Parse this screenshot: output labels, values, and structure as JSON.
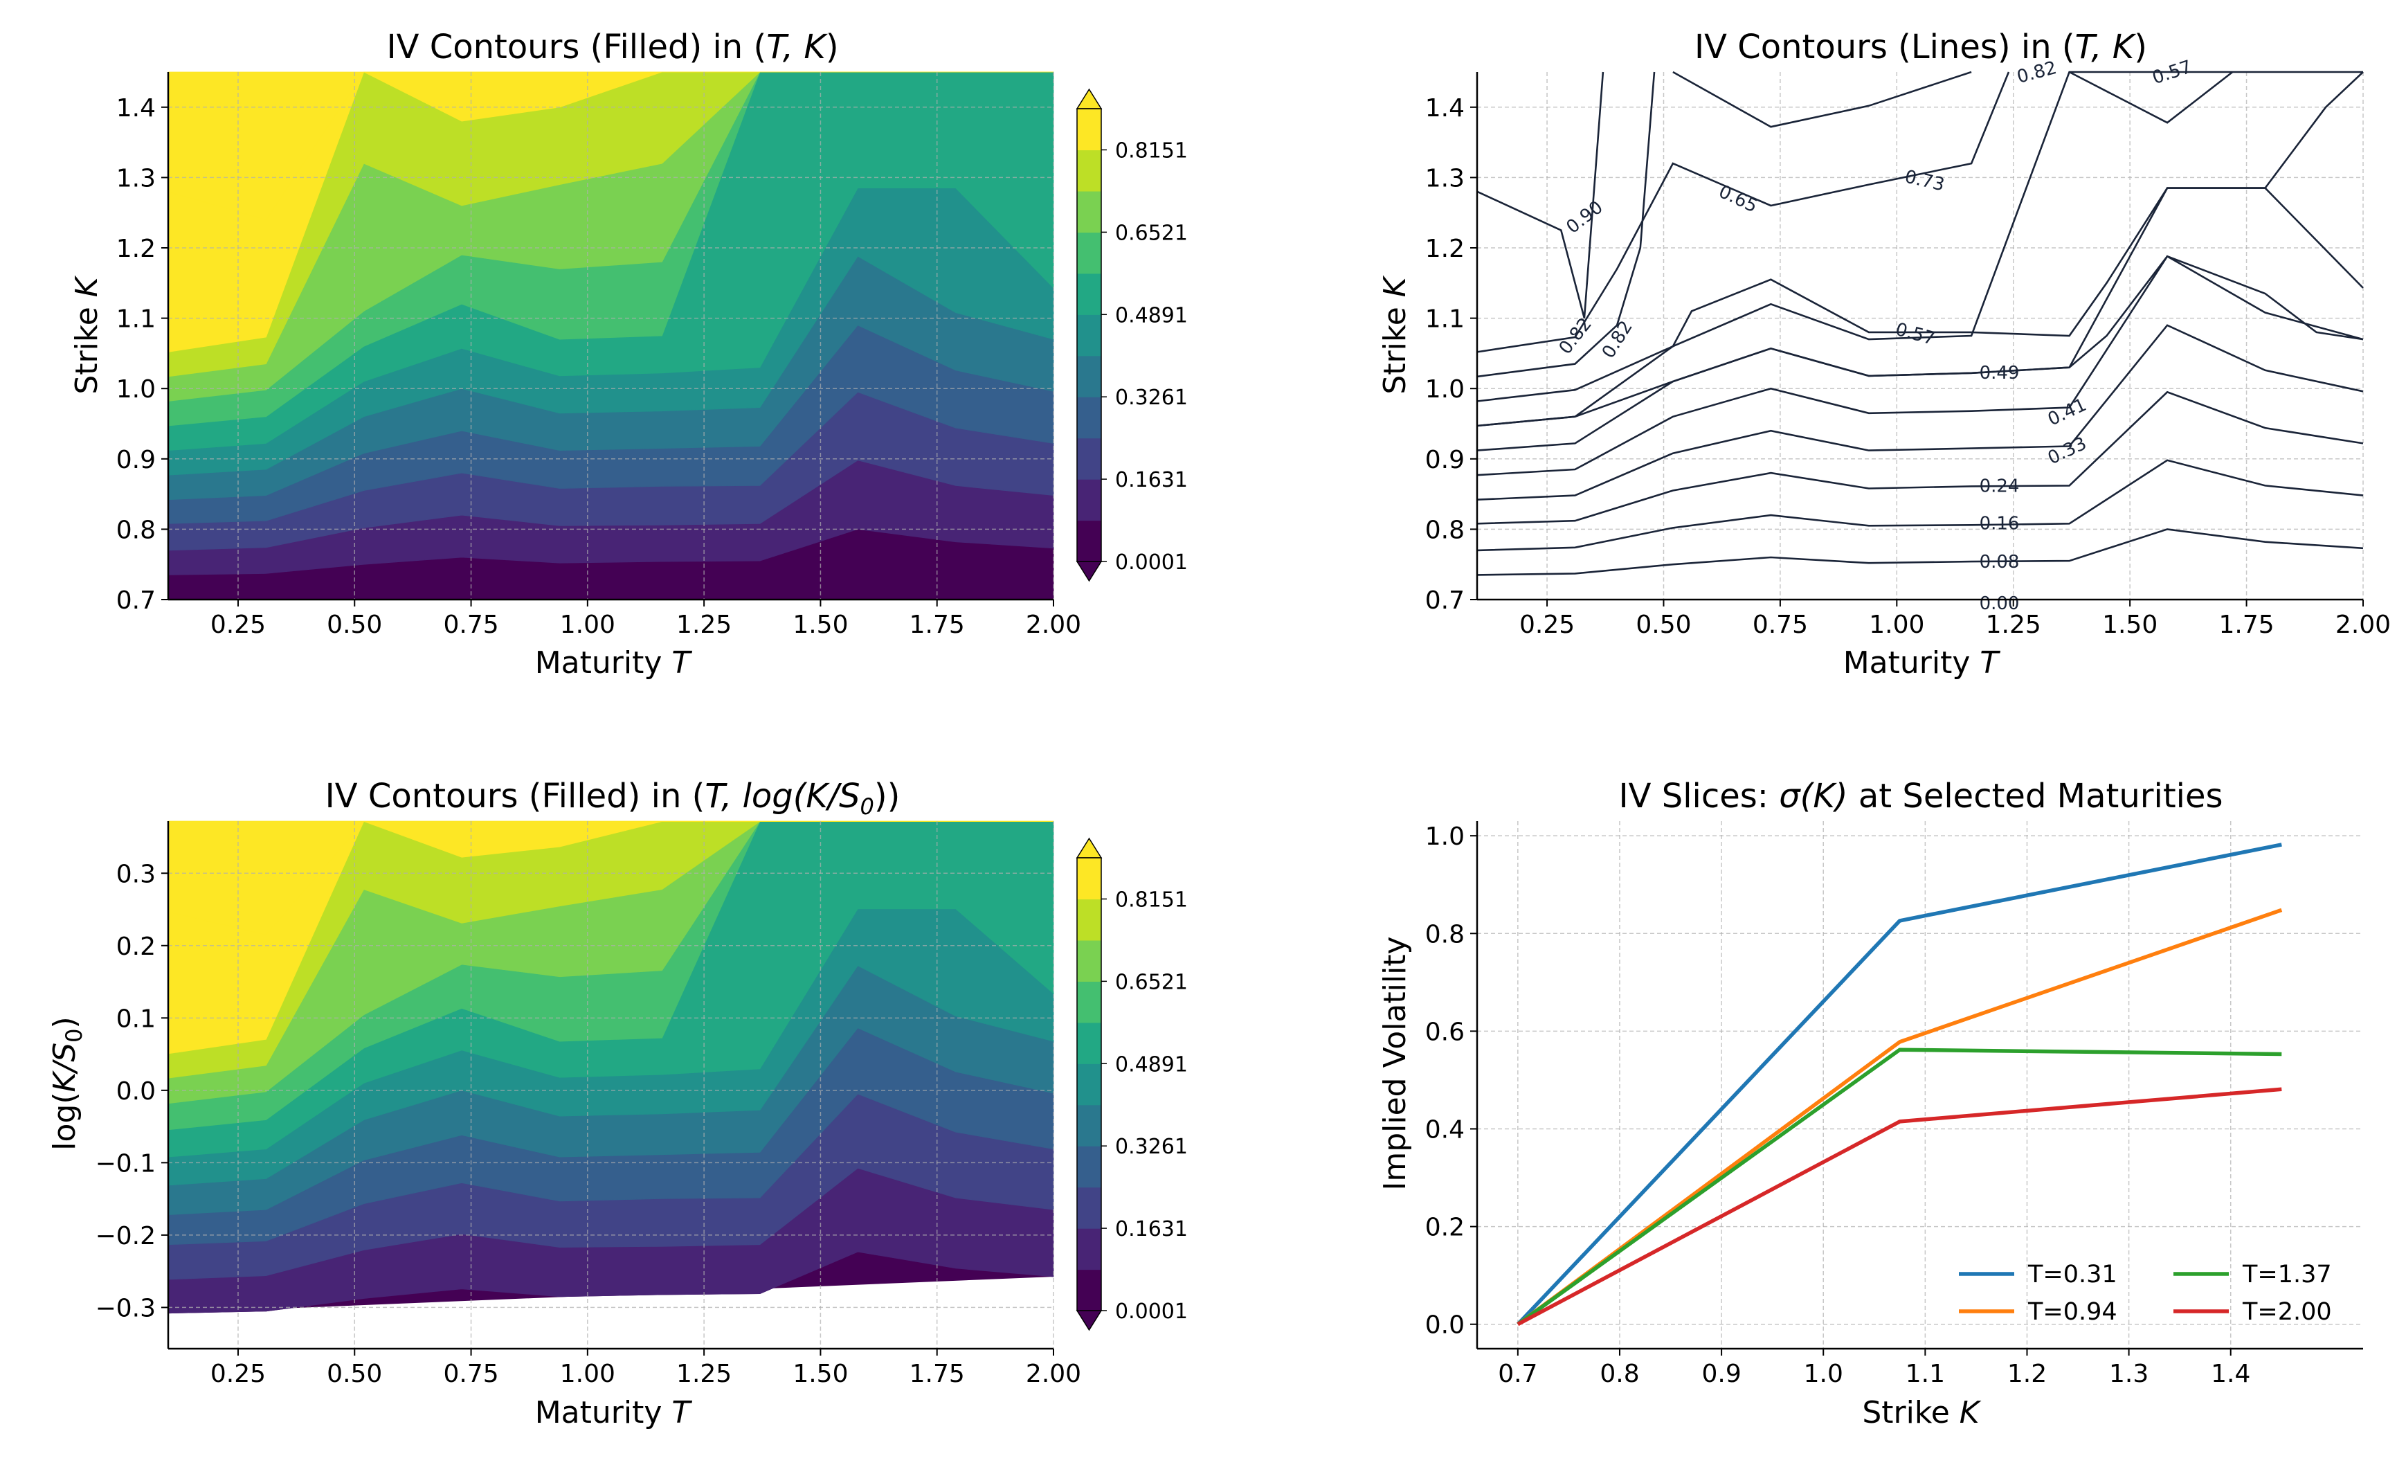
{
  "figure": {
    "panels": [
      {
        "id": "filled_TK",
        "title_pre": "IV Contours (Filled) in (",
        "title_math": "T, K",
        "title_post": ")",
        "xlabel_pre": "Maturity ",
        "xlabel_math": "T",
        "ylabel_pre": "Strike ",
        "ylabel_math": "K",
        "xticks": [
          "0.25",
          "0.50",
          "0.75",
          "1.00",
          "1.25",
          "1.50",
          "1.75",
          "2.00"
        ],
        "yticks": [
          "0.7",
          "0.8",
          "0.9",
          "1.0",
          "1.1",
          "1.2",
          "1.3",
          "1.4"
        ],
        "colorbar_ticks": [
          "0.0001",
          "0.1631",
          "0.3261",
          "0.4891",
          "0.6521",
          "0.8151"
        ]
      },
      {
        "id": "lines_TK",
        "title_pre": "IV Contours (Lines) in (",
        "title_math": "T, K",
        "title_post": ")",
        "xlabel_pre": "Maturity ",
        "xlabel_math": "T",
        "ylabel_pre": "Strike ",
        "ylabel_math": "K",
        "xticks": [
          "0.25",
          "0.50",
          "0.75",
          "1.00",
          "1.25",
          "1.50",
          "1.75",
          "2.00"
        ],
        "yticks": [
          "0.7",
          "0.8",
          "0.9",
          "1.0",
          "1.1",
          "1.2",
          "1.3",
          "1.4"
        ],
        "contour_labels": [
          "0.00",
          "0.08",
          "0.16",
          "0.24",
          "0.33",
          "0.41",
          "0.49",
          "0.57",
          "0.65",
          "0.73",
          "0.82",
          "0.90"
        ]
      },
      {
        "id": "filled_logmoneyness",
        "title_pre": "IV Contours (Filled) in (",
        "title_math": "T, log(K/S",
        "title_sub": "0",
        "title_post": "))",
        "xlabel_pre": "Maturity ",
        "xlabel_math": "T",
        "ylabel_pre": "log(",
        "ylabel_math": "K/S",
        "ylabel_sub": "0",
        "ylabel_post": ")",
        "xticks": [
          "0.25",
          "0.50",
          "0.75",
          "1.00",
          "1.25",
          "1.50",
          "1.75",
          "2.00"
        ],
        "yticks": [
          "−0.3",
          "−0.2",
          "−0.1",
          "0.0",
          "0.1",
          "0.2",
          "0.3"
        ],
        "colorbar_ticks": [
          "0.0001",
          "0.1631",
          "0.3261",
          "0.4891",
          "0.6521",
          "0.8151"
        ]
      },
      {
        "id": "slices",
        "title_pre": "IV Slices: ",
        "title_math": "σ(K)",
        "title_post": " at Selected Maturities",
        "xlabel_pre": "Strike ",
        "xlabel_math": "K",
        "ylabel_pre": "Implied Volatility",
        "xticks": [
          "0.7",
          "0.8",
          "0.9",
          "1.0",
          "1.1",
          "1.2",
          "1.3",
          "1.4"
        ],
        "yticks": [
          "0.0",
          "0.2",
          "0.4",
          "0.6",
          "0.8",
          "1.0"
        ],
        "legend": [
          "T=0.31",
          "T=0.94",
          "T=1.37",
          "T=2.00"
        ]
      }
    ]
  },
  "colors": {
    "levels": [
      "#440154",
      "#482475",
      "#414487",
      "#355f8d",
      "#2a788e",
      "#21918c",
      "#22a884",
      "#44bf70",
      "#7ad151",
      "#bddf26",
      "#fde725"
    ],
    "series": [
      "#1f77b4",
      "#ff7f0e",
      "#2ca02c",
      "#d62728"
    ],
    "contour_line": "#1a2438"
  },
  "chart_data": [
    {
      "type": "heatmap",
      "title": "IV Contours (Filled) in (T, K)",
      "xlabel": "Maturity T",
      "ylabel": "Strike K",
      "xlim": [
        0.1,
        2.0
      ],
      "ylim": [
        0.7,
        1.45
      ],
      "T_grid": [
        0.1,
        0.31,
        0.52,
        0.73,
        0.94,
        1.16,
        1.37,
        1.58,
        1.79,
        2.0
      ],
      "levels": [
        0.0001,
        0.0816,
        0.1631,
        0.2446,
        0.3261,
        0.4076,
        0.4891,
        0.5706,
        0.6521,
        0.7336,
        0.8151,
        0.8966
      ],
      "boundaries_K": [
        [
          0.735,
          0.737,
          0.75,
          0.76,
          0.752,
          0.754,
          0.755,
          0.8,
          0.782,
          0.773
        ],
        [
          0.77,
          0.774,
          0.802,
          0.82,
          0.805,
          0.806,
          0.808,
          0.898,
          0.862,
          0.848
        ],
        [
          0.808,
          0.812,
          0.855,
          0.88,
          0.858,
          0.861,
          0.862,
          0.995,
          0.944,
          0.922
        ],
        [
          0.842,
          0.848,
          0.908,
          0.94,
          0.912,
          0.915,
          0.918,
          1.09,
          1.026,
          0.996
        ],
        [
          0.877,
          0.885,
          0.96,
          1.0,
          0.965,
          0.968,
          0.973,
          1.188,
          1.108,
          1.07
        ],
        [
          0.912,
          0.922,
          1.01,
          1.057,
          1.018,
          1.022,
          1.03,
          1.285,
          1.285,
          1.143
        ],
        [
          0.947,
          0.96,
          1.06,
          1.12,
          1.07,
          1.075,
          1.45,
          1.45,
          1.45,
          1.45
        ],
        [
          0.982,
          0.998,
          1.11,
          1.19,
          1.17,
          1.18,
          1.45,
          1.45,
          1.45,
          1.45
        ],
        [
          1.017,
          1.035,
          1.32,
          1.26,
          1.29,
          1.32,
          1.45,
          1.45,
          1.45,
          1.45
        ],
        [
          1.052,
          1.073,
          1.45,
          1.38,
          1.4,
          1.45,
          1.45,
          1.45,
          1.45,
          1.45
        ],
        [
          1.28,
          1.24,
          1.45,
          1.45,
          1.45,
          1.45,
          1.45,
          1.45,
          1.45,
          1.45
        ]
      ]
    },
    {
      "type": "line",
      "subtype": "contour",
      "title": "IV Contours (Lines) in (T, K)",
      "xlabel": "Maturity T",
      "ylabel": "Strike K",
      "xlim": [
        0.1,
        2.0
      ],
      "ylim": [
        0.7,
        1.45
      ],
      "contour_levels": [
        "0.00",
        "0.08",
        "0.16",
        "0.24",
        "0.33",
        "0.41",
        "0.49",
        "0.57",
        "0.65",
        "0.73",
        "0.82",
        "0.90"
      ]
    },
    {
      "type": "heatmap",
      "title": "IV Contours (Filled) in (T, log(K/S0))",
      "xlabel": "Maturity T",
      "ylabel": "log(K/S0)",
      "xlim": [
        0.1,
        2.0
      ],
      "ylim": [
        -0.357,
        0.372
      ],
      "y_transform": "log(K)",
      "levels": [
        0.0001,
        0.0816,
        0.1631,
        0.2446,
        0.3261,
        0.4076,
        0.4891,
        0.5706,
        0.6521,
        0.7336,
        0.8151,
        0.8966
      ]
    },
    {
      "type": "line",
      "title": "IV Slices: σ(K) at Selected Maturities",
      "xlabel": "Strike K",
      "ylabel": "Implied Volatility",
      "xlim": [
        0.66,
        1.53
      ],
      "ylim": [
        -0.05,
        1.03
      ],
      "x": [
        0.7,
        1.075,
        1.45
      ],
      "series": [
        {
          "name": "T=0.31",
          "values": [
            0.0,
            0.826,
            0.982
          ]
        },
        {
          "name": "T=0.94",
          "values": [
            0.0,
            0.578,
            0.848
          ]
        },
        {
          "name": "T=1.37",
          "values": [
            0.0,
            0.562,
            0.553
          ]
        },
        {
          "name": "T=2.00",
          "values": [
            0.0,
            0.415,
            0.481
          ]
        }
      ],
      "legend_position": "lower right"
    }
  ]
}
